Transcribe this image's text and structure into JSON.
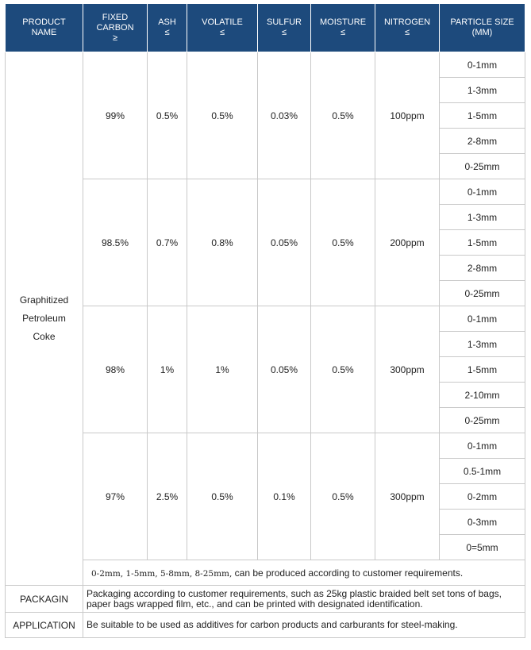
{
  "headers": [
    {
      "line1": "PRODUCT",
      "line2": "NAME",
      "line3": ""
    },
    {
      "line1": "FIXED",
      "line2": "CARBON",
      "line3": "≥"
    },
    {
      "line1": "ASH",
      "line2": "≤",
      "line3": ""
    },
    {
      "line1": "VOLATILE",
      "line2": "≤",
      "line3": ""
    },
    {
      "line1": "SULFUR",
      "line2": "≤",
      "line3": ""
    },
    {
      "line1": "MOISTURE",
      "line2": "≤",
      "line3": ""
    },
    {
      "line1": "NITROGEN",
      "line2": "≤",
      "line3": ""
    },
    {
      "line1": "PARTICLE SIZE",
      "line2": "(MM)",
      "line3": ""
    }
  ],
  "product": {
    "line1": "Graphitized",
    "line2": "Petroleum",
    "line3": "Coke"
  },
  "grades": [
    {
      "carbon": "99%",
      "ash": "0.5%",
      "volatile": "0.5%",
      "sulfur": "0.03%",
      "moisture": "0.5%",
      "nitrogen": "100ppm",
      "sizes": [
        "0-1mm",
        "1-3mm",
        "1-5mm",
        "2-8mm",
        "0-25mm"
      ]
    },
    {
      "carbon": "98.5%",
      "ash": "0.7%",
      "volatile": "0.8%",
      "sulfur": "0.05%",
      "moisture": "0.5%",
      "nitrogen": "200ppm",
      "sizes": [
        "0-1mm",
        "1-3mm",
        "1-5mm",
        "2-8mm",
        "0-25mm"
      ]
    },
    {
      "carbon": "98%",
      "ash": "1%",
      "volatile": "1%",
      "sulfur": "0.05%",
      "moisture": "0.5%",
      "nitrogen": "300ppm",
      "sizes": [
        "0-1mm",
        "1-3mm",
        "1-5mm",
        "2-10mm",
        "0-25mm"
      ]
    },
    {
      "carbon": "97%",
      "ash": "2.5%",
      "volatile": "0.5%",
      "sulfur": "0.1%",
      "moisture": "0.5%",
      "nitrogen": "300ppm",
      "sizes": [
        "0-1mm",
        "0.5-1mm",
        "0-2mm",
        "0-3mm",
        "0=5mm"
      ]
    }
  ],
  "note": {
    "sizes": "0-2mm, 1-5mm, 5-8mm, 8-25mm,",
    "text": " can be produced according to customer requirements."
  },
  "packaging": {
    "label": "PACKAGIN",
    "line1": "Packaging according to customer requirements, such as 25kg plastic braided belt set tons of bags,",
    "line2": "paper bags wrapped film, etc., and can be printed with designated identification."
  },
  "application": {
    "label": "APPLICATION",
    "text": "Be suitable to be used as additives for carbon products and carburants for steel-making."
  }
}
